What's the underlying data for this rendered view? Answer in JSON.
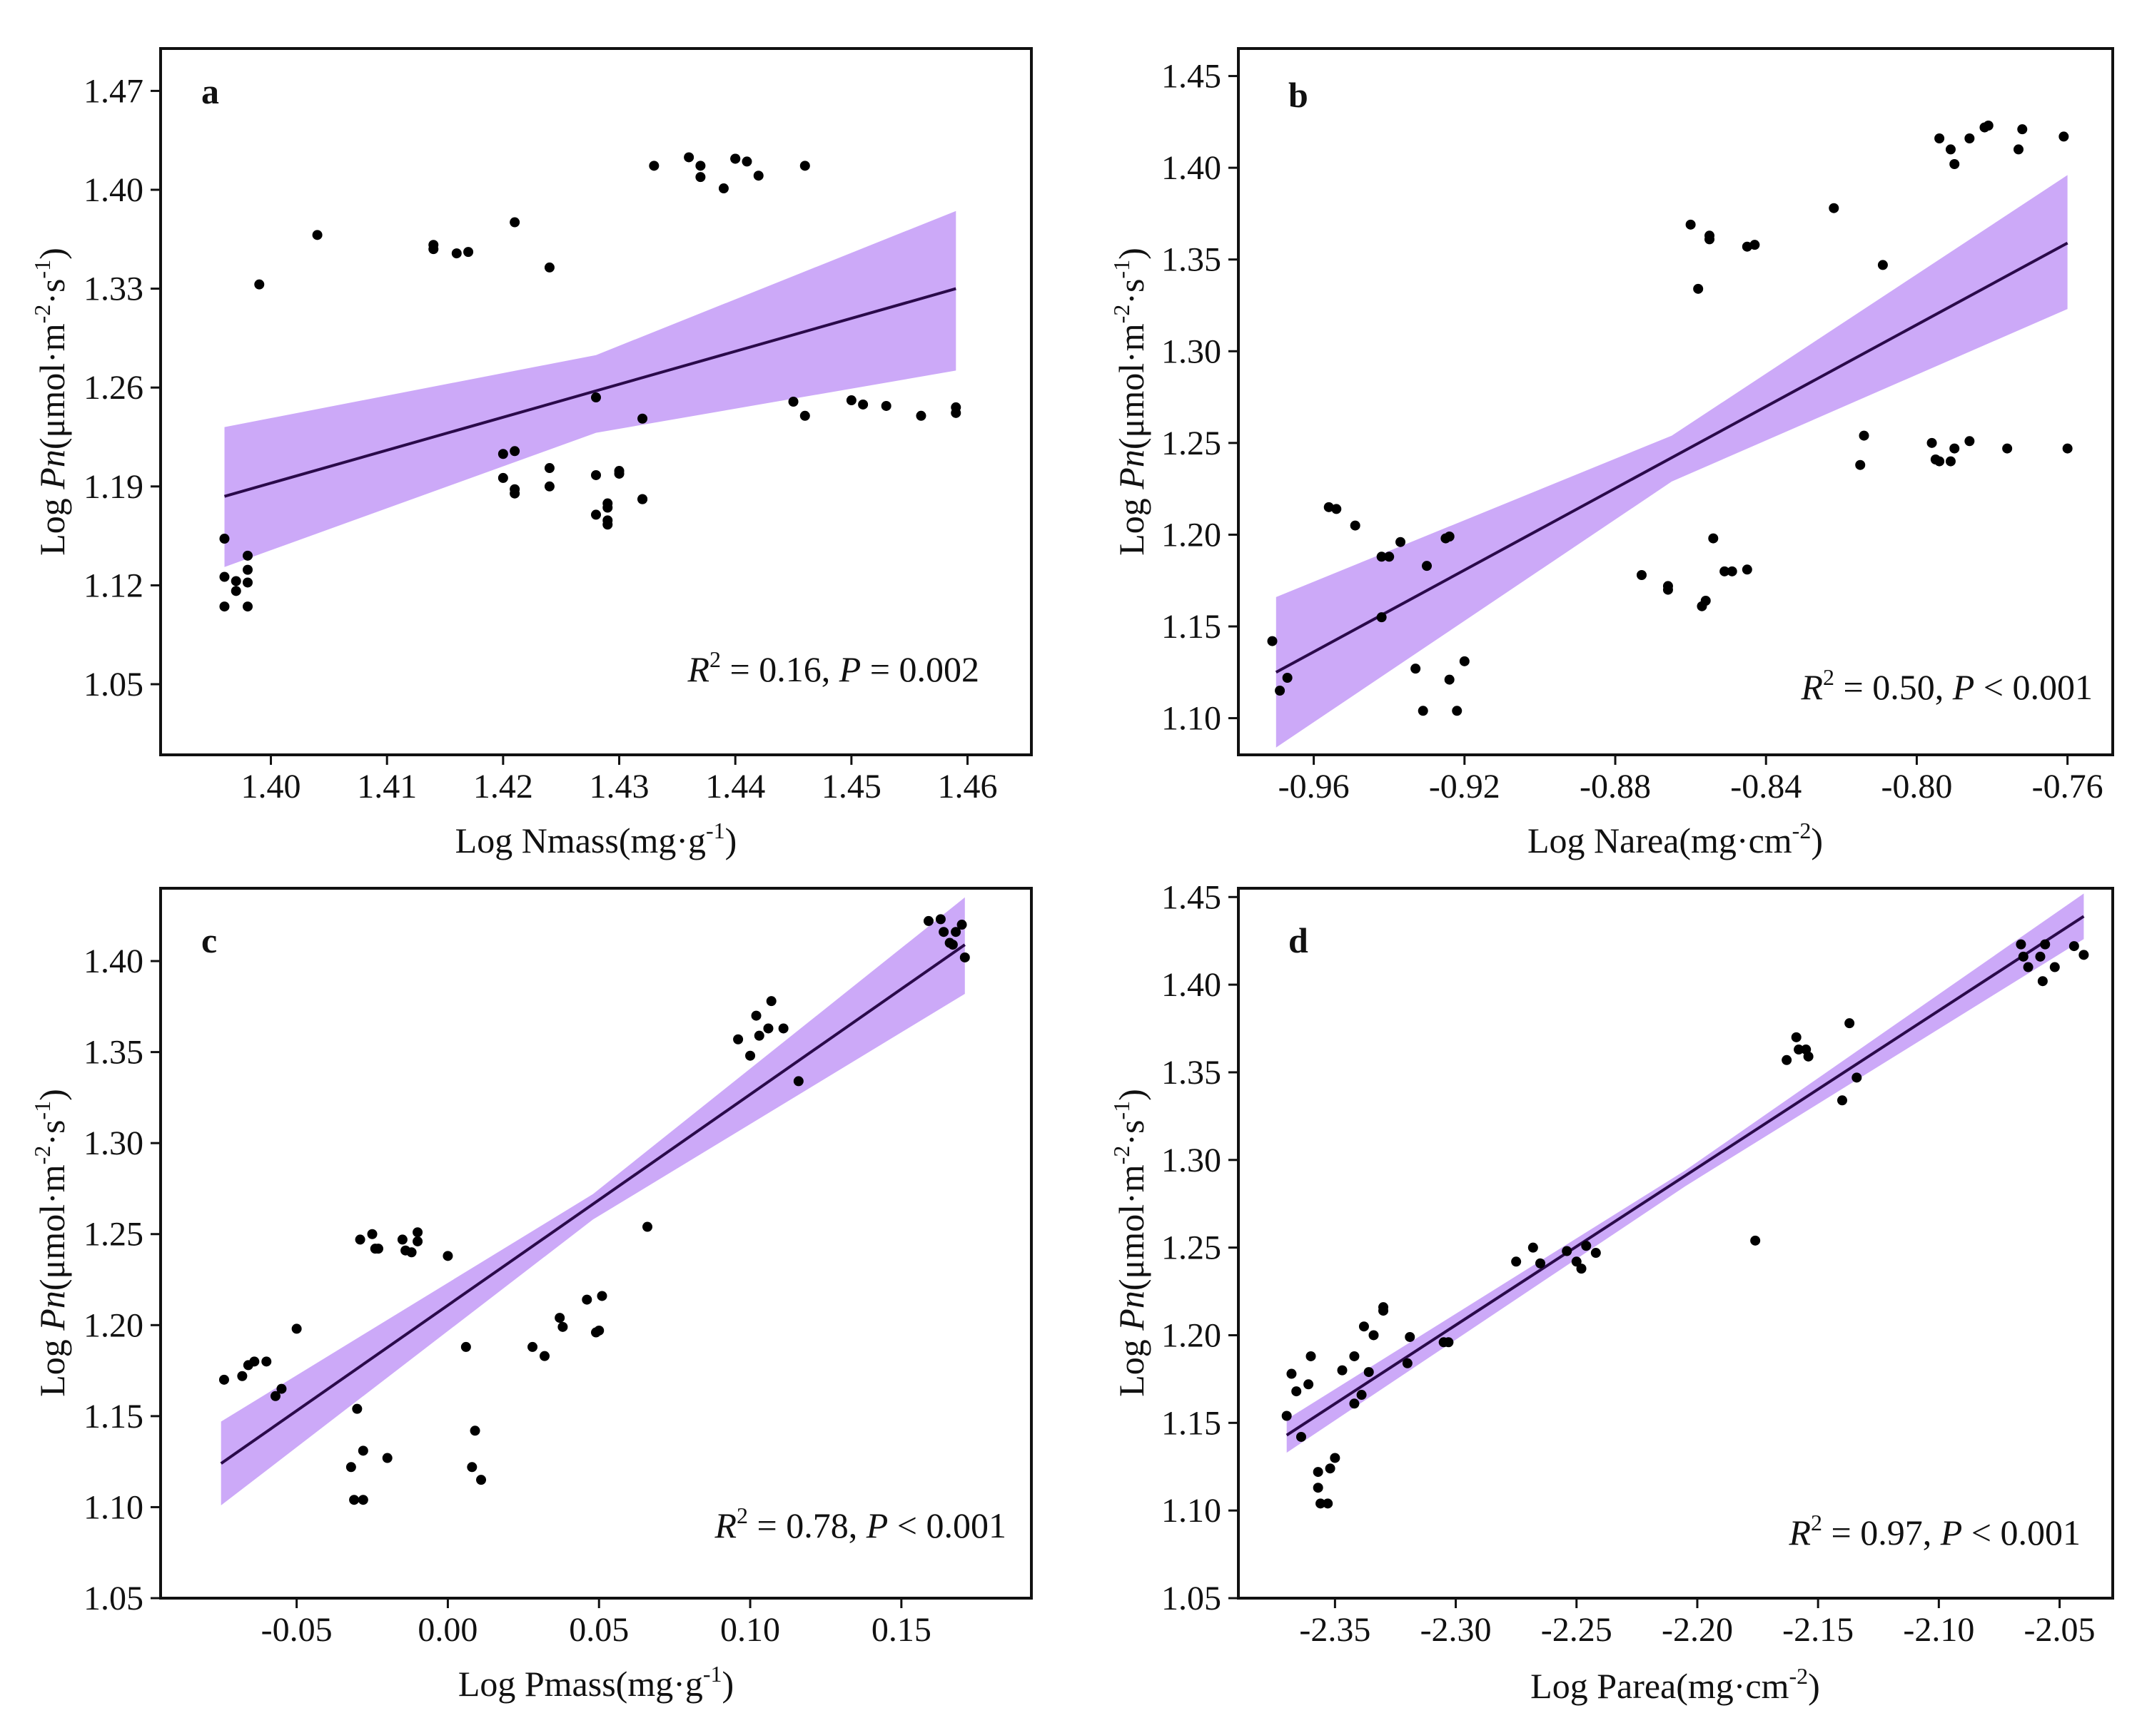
{
  "chart_data": [
    {
      "type": "scatter",
      "panel": "a",
      "xlabel": "Log Nmass(mg·g⁻¹)",
      "ylabel": "Log Pn(μmol·m⁻²·s⁻¹)",
      "xlim": [
        1.3905,
        1.4655
      ],
      "ylim": [
        1.0,
        1.5
      ],
      "xticks": [
        "1.40",
        "1.41",
        "1.42",
        "1.43",
        "1.44",
        "1.45",
        "1.46"
      ],
      "yticks": [
        "1.05",
        "1.12",
        "1.19",
        "1.26",
        "1.33",
        "1.40",
        "1.47"
      ],
      "annotation": "R² = 0.16, P = 0.002",
      "fit": {
        "x": [
          1.396,
          1.459
        ],
        "y": [
          1.183,
          1.33
        ]
      },
      "ci": {
        "x": [
          1.396,
          1.428,
          1.459
        ],
        "upper": [
          1.232,
          1.283,
          1.385
        ],
        "lower": [
          1.133,
          1.228,
          1.272
        ]
      },
      "points": [
        [
          1.396,
          1.105
        ],
        [
          1.396,
          1.126
        ],
        [
          1.396,
          1.153
        ],
        [
          1.397,
          1.123
        ],
        [
          1.397,
          1.116
        ],
        [
          1.398,
          1.141
        ],
        [
          1.398,
          1.122
        ],
        [
          1.398,
          1.105
        ],
        [
          1.398,
          1.131
        ],
        [
          1.399,
          1.333
        ],
        [
          1.404,
          1.368
        ],
        [
          1.414,
          1.358
        ],
        [
          1.414,
          1.361
        ],
        [
          1.416,
          1.355
        ],
        [
          1.417,
          1.356
        ],
        [
          1.42,
          1.213
        ],
        [
          1.42,
          1.196
        ],
        [
          1.421,
          1.377
        ],
        [
          1.421,
          1.215
        ],
        [
          1.421,
          1.188
        ],
        [
          1.421,
          1.185
        ],
        [
          1.424,
          1.203
        ],
        [
          1.424,
          1.345
        ],
        [
          1.424,
          1.19
        ],
        [
          1.428,
          1.253
        ],
        [
          1.428,
          1.198
        ],
        [
          1.428,
          1.17
        ],
        [
          1.429,
          1.175
        ],
        [
          1.429,
          1.178
        ],
        [
          1.429,
          1.163
        ],
        [
          1.429,
          1.166
        ],
        [
          1.43,
          1.199
        ],
        [
          1.43,
          1.201
        ],
        [
          1.432,
          1.181
        ],
        [
          1.432,
          1.181
        ],
        [
          1.432,
          1.238
        ],
        [
          1.433,
          1.417
        ],
        [
          1.436,
          1.423
        ],
        [
          1.437,
          1.409
        ],
        [
          1.437,
          1.417
        ],
        [
          1.439,
          1.401
        ],
        [
          1.44,
          1.422
        ],
        [
          1.44,
          1.422
        ],
        [
          1.441,
          1.42
        ],
        [
          1.442,
          1.41
        ],
        [
          1.445,
          1.25
        ],
        [
          1.446,
          1.24
        ],
        [
          1.446,
          1.417
        ],
        [
          1.45,
          1.251
        ],
        [
          1.451,
          1.248
        ],
        [
          1.453,
          1.247
        ],
        [
          1.456,
          1.24
        ],
        [
          1.459,
          1.246
        ],
        [
          1.459,
          1.242
        ]
      ]
    },
    {
      "type": "scatter",
      "panel": "b",
      "xlabel": "Log Narea(mg·cm⁻²)",
      "ylabel": "Log Pn(μmol·m⁻²·s⁻¹)",
      "xlim": [
        -0.98,
        -0.748
      ],
      "ylim": [
        1.08,
        1.465
      ],
      "xticks": [
        "-0.96",
        "-0.92",
        "-0.88",
        "-0.84",
        "-0.80",
        "-0.76"
      ],
      "yticks": [
        "1.10",
        "1.15",
        "1.20",
        "1.25",
        "1.30",
        "1.35",
        "1.40",
        "1.45"
      ],
      "annotation": "R² = 0.50, P < 0.001",
      "fit": {
        "x": [
          -0.97,
          -0.76
        ],
        "y": [
          1.125,
          1.359
        ]
      },
      "ci": {
        "x": [
          -0.97,
          -0.865,
          -0.76
        ],
        "upper": [
          1.166,
          1.254,
          1.396
        ],
        "lower": [
          1.084,
          1.229,
          1.323
        ]
      },
      "points": [
        [
          -0.971,
          1.142
        ],
        [
          -0.969,
          1.115
        ],
        [
          -0.967,
          1.122
        ],
        [
          -0.956,
          1.215
        ],
        [
          -0.954,
          1.214
        ],
        [
          -0.949,
          1.205
        ],
        [
          -0.942,
          1.155
        ],
        [
          -0.942,
          1.188
        ],
        [
          -0.94,
          1.188
        ],
        [
          -0.937,
          1.196
        ],
        [
          -0.933,
          1.127
        ],
        [
          -0.931,
          1.104
        ],
        [
          -0.93,
          1.183
        ],
        [
          -0.925,
          1.198
        ],
        [
          -0.924,
          1.199
        ],
        [
          -0.924,
          1.121
        ],
        [
          -0.922,
          1.104
        ],
        [
          -0.92,
          1.131
        ],
        [
          -0.873,
          1.178
        ],
        [
          -0.866,
          1.172
        ],
        [
          -0.866,
          1.17
        ],
        [
          -0.86,
          1.369
        ],
        [
          -0.858,
          1.334
        ],
        [
          -0.857,
          1.161
        ],
        [
          -0.856,
          1.164
        ],
        [
          -0.855,
          1.361
        ],
        [
          -0.855,
          1.363
        ],
        [
          -0.854,
          1.198
        ],
        [
          -0.851,
          1.18
        ],
        [
          -0.849,
          1.18
        ],
        [
          -0.845,
          1.357
        ],
        [
          -0.845,
          1.181
        ],
        [
          -0.843,
          1.358
        ],
        [
          -0.822,
          1.378
        ],
        [
          -0.815,
          1.238
        ],
        [
          -0.814,
          1.254
        ],
        [
          -0.809,
          1.347
        ],
        [
          -0.796,
          1.25
        ],
        [
          -0.795,
          1.241
        ],
        [
          -0.794,
          1.24
        ],
        [
          -0.794,
          1.416
        ],
        [
          -0.791,
          1.41
        ],
        [
          -0.791,
          1.24
        ],
        [
          -0.79,
          1.402
        ],
        [
          -0.79,
          1.247
        ],
        [
          -0.786,
          1.416
        ],
        [
          -0.786,
          1.251
        ],
        [
          -0.782,
          1.422
        ],
        [
          -0.781,
          1.423
        ],
        [
          -0.776,
          1.247
        ],
        [
          -0.773,
          1.41
        ],
        [
          -0.772,
          1.421
        ],
        [
          -0.761,
          1.417
        ],
        [
          -0.76,
          1.247
        ]
      ]
    },
    {
      "type": "scatter",
      "panel": "c",
      "xlabel": "Log Pmass(mg·g⁻¹)",
      "ylabel": "Log Pn(μmol·m⁻²·s⁻¹)",
      "xlim": [
        -0.095,
        0.193
      ],
      "ylim": [
        1.05,
        1.44
      ],
      "xticks": [
        "-0.05",
        "0.00",
        "0.05",
        "0.10",
        "0.15"
      ],
      "yticks": [
        "1.05",
        "1.10",
        "1.15",
        "1.20",
        "1.25",
        "1.30",
        "1.35",
        "1.40"
      ],
      "annotation": "R² = 0.78, P < 0.001",
      "fit": {
        "x": [
          -0.075,
          0.171
        ],
        "y": [
          1.124,
          1.409
        ]
      },
      "ci": {
        "x": [
          -0.075,
          0.048,
          0.171
        ],
        "upper": [
          1.147,
          1.272,
          1.435
        ],
        "lower": [
          1.101,
          1.258,
          1.382
        ]
      },
      "points": [
        [
          -0.074,
          1.17
        ],
        [
          -0.068,
          1.172
        ],
        [
          -0.066,
          1.178
        ],
        [
          -0.064,
          1.18
        ],
        [
          -0.06,
          1.18
        ],
        [
          -0.057,
          1.161
        ],
        [
          -0.055,
          1.165
        ],
        [
          -0.05,
          1.198
        ],
        [
          -0.032,
          1.122
        ],
        [
          -0.031,
          1.104
        ],
        [
          -0.03,
          1.154
        ],
        [
          -0.029,
          1.247
        ],
        [
          -0.028,
          1.131
        ],
        [
          -0.028,
          1.104
        ],
        [
          -0.025,
          1.25
        ],
        [
          -0.024,
          1.242
        ],
        [
          -0.023,
          1.242
        ],
        [
          -0.02,
          1.127
        ],
        [
          -0.015,
          1.247
        ],
        [
          -0.014,
          1.241
        ],
        [
          -0.012,
          1.24
        ],
        [
          -0.01,
          1.246
        ],
        [
          -0.01,
          1.251
        ],
        [
          0.0,
          1.238
        ],
        [
          0.006,
          1.188
        ],
        [
          0.008,
          1.122
        ],
        [
          0.009,
          1.142
        ],
        [
          0.011,
          1.115
        ],
        [
          0.028,
          1.188
        ],
        [
          0.032,
          1.183
        ],
        [
          0.037,
          1.204
        ],
        [
          0.038,
          1.199
        ],
        [
          0.046,
          1.214
        ],
        [
          0.049,
          1.196
        ],
        [
          0.05,
          1.197
        ],
        [
          0.051,
          1.216
        ],
        [
          0.066,
          1.254
        ],
        [
          0.096,
          1.357
        ],
        [
          0.1,
          1.348
        ],
        [
          0.102,
          1.37
        ],
        [
          0.103,
          1.359
        ],
        [
          0.106,
          1.363
        ],
        [
          0.107,
          1.378
        ],
        [
          0.111,
          1.363
        ],
        [
          0.116,
          1.334
        ],
        [
          0.159,
          1.422
        ],
        [
          0.163,
          1.423
        ],
        [
          0.164,
          1.416
        ],
        [
          0.166,
          1.41
        ],
        [
          0.167,
          1.409
        ],
        [
          0.168,
          1.416
        ],
        [
          0.17,
          1.42
        ],
        [
          0.171,
          1.402
        ]
      ]
    },
    {
      "type": "scatter",
      "panel": "d",
      "xlabel": "Log Parea(mg·cm⁻²)",
      "ylabel": "Log Pn(μmol·m⁻²·s⁻¹)",
      "xlim": [
        -2.39,
        -2.028
      ],
      "ylim": [
        1.05,
        1.455
      ],
      "xticks": [
        "-2.35",
        "-2.30",
        "-2.25",
        "-2.20",
        "-2.15",
        "-2.10",
        "-2.05"
      ],
      "yticks": [
        "1.05",
        "1.10",
        "1.15",
        "1.20",
        "1.25",
        "1.30",
        "1.35",
        "1.40",
        "1.45"
      ],
      "annotation": "R² = 0.97, P < 0.001",
      "fit": {
        "x": [
          -2.37,
          -2.04
        ],
        "y": [
          1.143,
          1.439
        ]
      },
      "ci": {
        "x": [
          -2.37,
          -2.205,
          -2.04
        ],
        "upper": [
          1.152,
          1.294,
          1.452
        ],
        "lower": [
          1.133,
          1.285,
          1.426
        ]
      },
      "points": [
        [
          -2.37,
          1.154
        ],
        [
          -2.368,
          1.178
        ],
        [
          -2.366,
          1.168
        ],
        [
          -2.364,
          1.142
        ],
        [
          -2.361,
          1.172
        ],
        [
          -2.36,
          1.188
        ],
        [
          -2.357,
          1.113
        ],
        [
          -2.357,
          1.122
        ],
        [
          -2.356,
          1.104
        ],
        [
          -2.353,
          1.104
        ],
        [
          -2.352,
          1.124
        ],
        [
          -2.35,
          1.13
        ],
        [
          -2.347,
          1.18
        ],
        [
          -2.342,
          1.161
        ],
        [
          -2.342,
          1.188
        ],
        [
          -2.339,
          1.166
        ],
        [
          -2.338,
          1.205
        ],
        [
          -2.336,
          1.179
        ],
        [
          -2.334,
          1.2
        ],
        [
          -2.33,
          1.214
        ],
        [
          -2.33,
          1.216
        ],
        [
          -2.32,
          1.184
        ],
        [
          -2.319,
          1.199
        ],
        [
          -2.305,
          1.196
        ],
        [
          -2.303,
          1.196
        ],
        [
          -2.275,
          1.242
        ],
        [
          -2.268,
          1.25
        ],
        [
          -2.265,
          1.241
        ],
        [
          -2.254,
          1.248
        ],
        [
          -2.25,
          1.242
        ],
        [
          -2.248,
          1.238
        ],
        [
          -2.246,
          1.251
        ],
        [
          -2.242,
          1.247
        ],
        [
          -2.176,
          1.254
        ],
        [
          -2.163,
          1.357
        ],
        [
          -2.159,
          1.37
        ],
        [
          -2.158,
          1.363
        ],
        [
          -2.155,
          1.363
        ],
        [
          -2.154,
          1.359
        ],
        [
          -2.14,
          1.334
        ],
        [
          -2.137,
          1.378
        ],
        [
          -2.134,
          1.347
        ],
        [
          -2.066,
          1.423
        ],
        [
          -2.065,
          1.416
        ],
        [
          -2.063,
          1.41
        ],
        [
          -2.058,
          1.416
        ],
        [
          -2.057,
          1.402
        ],
        [
          -2.056,
          1.423
        ],
        [
          -2.052,
          1.41
        ],
        [
          -2.044,
          1.422
        ],
        [
          -2.04,
          1.417
        ]
      ]
    }
  ]
}
